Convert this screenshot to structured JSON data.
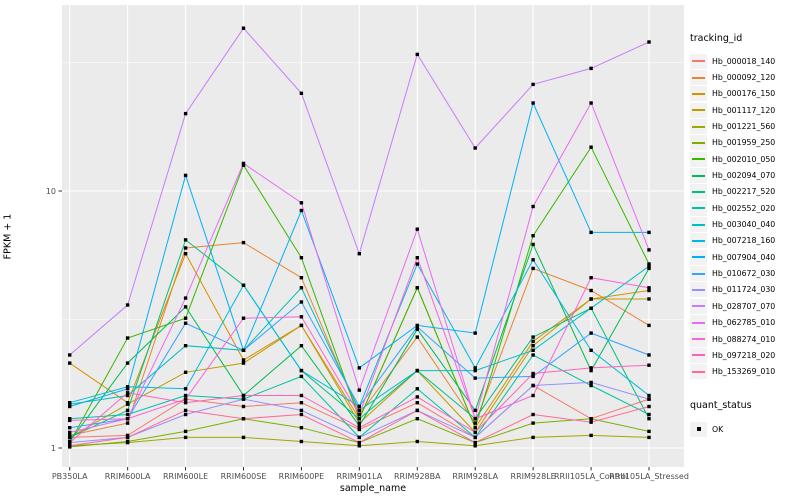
{
  "chart_data": {
    "type": "line",
    "title": "",
    "xlabel": "sample_name",
    "ylabel": "FPKM + 1",
    "x_categories": [
      "PB350LA",
      "RRIM600LA",
      "RRIM600LE",
      "RRIM600SE",
      "RRIM600PE",
      "RRIM901LA",
      "RRIM928BA",
      "RRIM928LA",
      "RRIM928LE",
      "RRII105LA_Control",
      "RRII105LA_Stressed"
    ],
    "y_scale": "log10",
    "y_ticks": [
      1,
      10
    ],
    "y_tick_labels": [
      "1",
      "10"
    ],
    "y_minor_ticks": [
      3.162,
      31.62
    ],
    "ylim": [
      0.93,
      53
    ],
    "grid": true,
    "legend_position": "right",
    "legend_tracking_title": "tracking_id",
    "legend_quant_title": "quant_status",
    "quant_items": [
      {
        "label": "OK",
        "marker": "black-square"
      }
    ],
    "series": [
      {
        "name": "Hb_000018_140",
        "color": "#F8766D",
        "values": [
          1.1,
          1.12,
          1.55,
          1.45,
          1.5,
          1.18,
          1.5,
          1.1,
          1.75,
          1.3,
          1.55
        ]
      },
      {
        "name": "Hb_000092_120",
        "color": "#EA8331",
        "values": [
          1.12,
          1.25,
          6.0,
          6.3,
          4.6,
          1.35,
          2.7,
          1.25,
          5.0,
          4.1,
          3.0
        ]
      },
      {
        "name": "Hb_000176_150",
        "color": "#D89000",
        "values": [
          2.14,
          1.5,
          5.7,
          2.2,
          3.0,
          1.3,
          4.2,
          1.2,
          2.6,
          3.8,
          4.1
        ]
      },
      {
        "name": "Hb_001117_120",
        "color": "#C09B00",
        "values": [
          1.1,
          1.48,
          1.97,
          2.14,
          3.0,
          1.25,
          2.0,
          1.15,
          2.5,
          3.8,
          3.8
        ]
      },
      {
        "name": "Hb_001221_560",
        "color": "#A3A500",
        "values": [
          1.02,
          1.05,
          1.1,
          1.1,
          1.06,
          1.02,
          1.06,
          1.02,
          1.1,
          1.12,
          1.1
        ]
      },
      {
        "name": "Hb_001959_250",
        "color": "#7CAE00",
        "values": [
          1.01,
          1.06,
          1.16,
          1.3,
          1.2,
          1.05,
          1.3,
          1.05,
          1.25,
          1.3,
          1.16
        ]
      },
      {
        "name": "Hb_002010_050",
        "color": "#39B600",
        "values": [
          1.05,
          2.68,
          3.2,
          12.6,
          5.5,
          1.3,
          4.2,
          1.2,
          6.7,
          14.8,
          5.2
        ]
      },
      {
        "name": "Hb_002094_070",
        "color": "#00BB4E",
        "values": [
          1.06,
          2.14,
          3.54,
          1.6,
          2.5,
          1.22,
          2.9,
          1.4,
          6.2,
          2.0,
          5.0
        ]
      },
      {
        "name": "Hb_002217_520",
        "color": "#00BF7D",
        "values": [
          1.1,
          1.4,
          6.45,
          4.3,
          2.0,
          1.3,
          2.0,
          1.3,
          2.7,
          3.5,
          1.3
        ]
      },
      {
        "name": "Hb_002552_020",
        "color": "#00C1A3",
        "values": [
          1.3,
          1.35,
          1.6,
          1.55,
          1.9,
          1.1,
          1.7,
          1.1,
          2.3,
          1.75,
          1.35
        ]
      },
      {
        "name": "Hb_003040_040",
        "color": "#00BFC4",
        "values": [
          1.48,
          1.6,
          2.5,
          2.4,
          4.2,
          1.4,
          2.0,
          2.0,
          2.4,
          3.5,
          5.1
        ]
      },
      {
        "name": "Hb_007218_160",
        "color": "#00BAE0",
        "values": [
          1.5,
          1.73,
          1.7,
          4.3,
          2.0,
          1.45,
          5.2,
          2.05,
          5.4,
          2.4,
          1.6
        ]
      },
      {
        "name": "Hb_007904_040",
        "color": "#00B0F6",
        "values": [
          1.45,
          1.7,
          11.5,
          2.4,
          8.4,
          2.05,
          3.0,
          2.8,
          22.0,
          6.9,
          6.9
        ]
      },
      {
        "name": "Hb_010672_030",
        "color": "#35A2FF",
        "values": [
          1.2,
          1.3,
          3.06,
          2.4,
          3.7,
          1.45,
          2.96,
          1.87,
          1.9,
          2.8,
          2.3
        ]
      },
      {
        "name": "Hb_011724_030",
        "color": "#9590FF",
        "values": [
          1.05,
          1.1,
          1.35,
          1.55,
          1.4,
          1.1,
          1.4,
          1.1,
          1.75,
          1.8,
          1.55
        ]
      },
      {
        "name": "Hb_028707_070",
        "color": "#C77CFF",
        "values": [
          2.3,
          3.6,
          20.0,
          43.0,
          24.0,
          5.7,
          34.0,
          14.7,
          26.0,
          30.0,
          38.0
        ]
      },
      {
        "name": "Hb_062785_010",
        "color": "#E76BF3",
        "values": [
          1.15,
          1.3,
          3.83,
          12.8,
          9.0,
          1.68,
          7.1,
          1.3,
          8.7,
          22.0,
          5.9
        ]
      },
      {
        "name": "Hb_088274_010",
        "color": "#FA62DB",
        "values": [
          1.28,
          1.3,
          1.55,
          3.2,
          3.24,
          1.35,
          5.5,
          1.3,
          1.6,
          4.6,
          4.2
        ]
      },
      {
        "name": "Hb_097218_020",
        "color": "#FF62BC",
        "values": [
          1.05,
          1.64,
          1.5,
          1.6,
          1.6,
          1.2,
          1.58,
          1.15,
          1.95,
          2.05,
          2.1
        ]
      },
      {
        "name": "Hb_153269_010",
        "color": "#FF6A98",
        "values": [
          1.02,
          1.1,
          1.4,
          1.3,
          1.35,
          1.05,
          1.4,
          1.05,
          1.35,
          1.26,
          1.45
        ]
      }
    ]
  },
  "colors": {
    "panel_bg": "#EBEBEB",
    "grid": "#FFFFFF",
    "legend_key_bg": "#F2F2F2",
    "tick_label": "#4D4D4D",
    "tick_mark": "#333333",
    "marker": "#000000"
  }
}
